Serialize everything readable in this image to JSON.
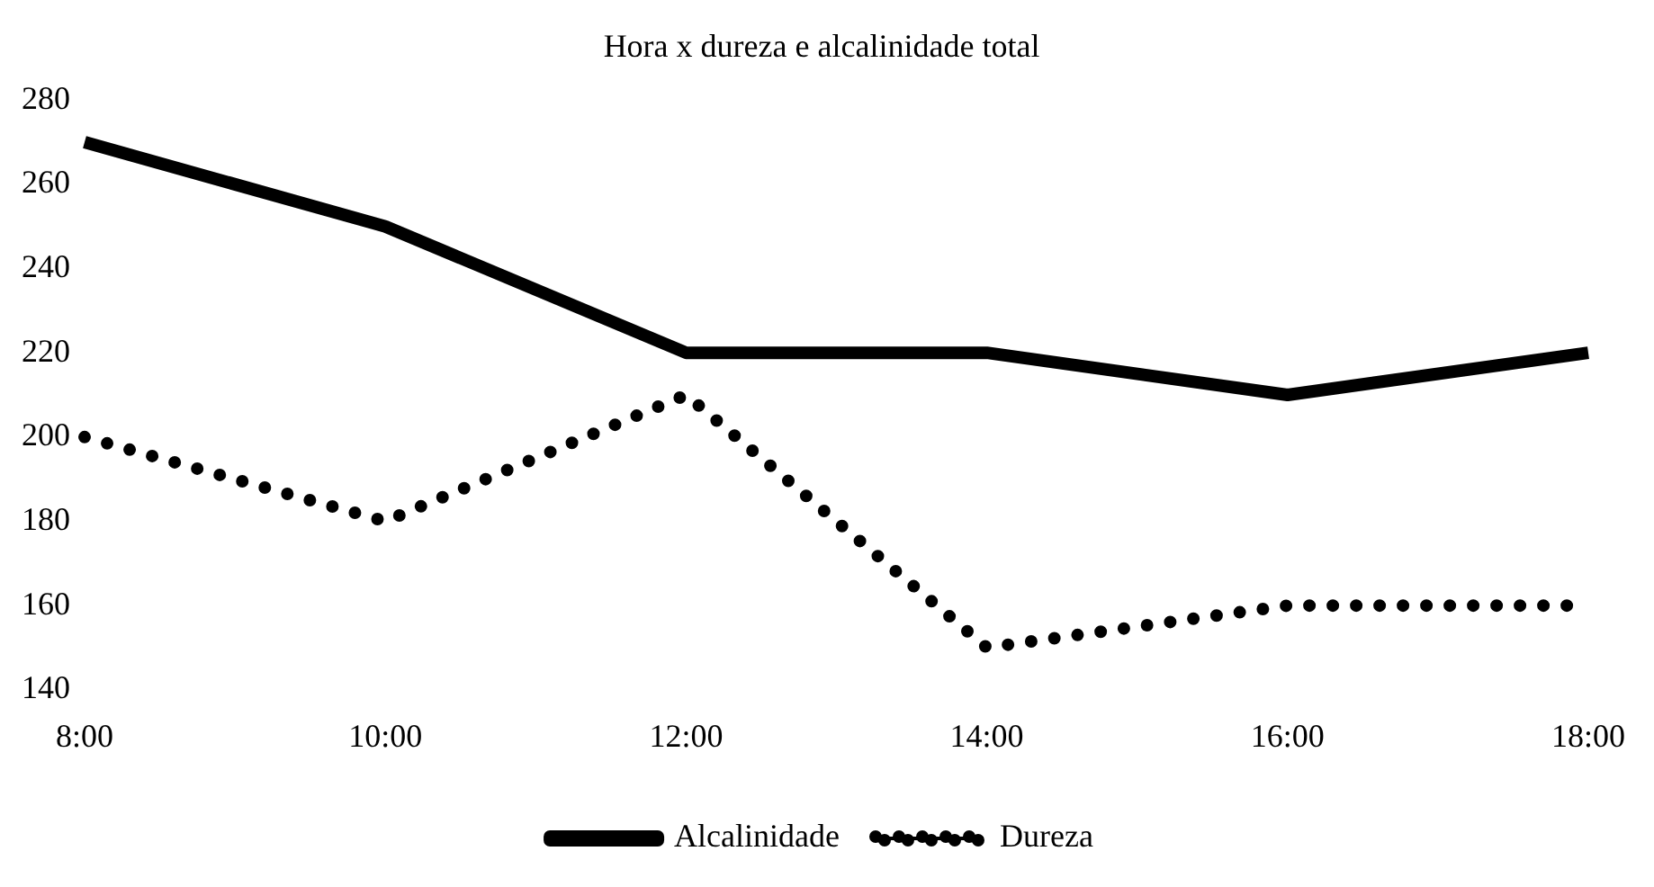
{
  "chart_data": {
    "type": "line",
    "title": "Hora x dureza e alcalinidade total",
    "categories": [
      "8:00",
      "10:00",
      "12:00",
      "14:00",
      "16:00",
      "18:00"
    ],
    "series": [
      {
        "name": "Alcalinidade",
        "color": "#000000",
        "line_style": "solid",
        "values": [
          270,
          250,
          220,
          220,
          210,
          220
        ]
      },
      {
        "name": "Dureza",
        "color": "#000000",
        "line_style": "dotted",
        "values": [
          200,
          180,
          210,
          150,
          160,
          160
        ]
      }
    ],
    "ylim": [
      140,
      280
    ],
    "yticks": [
      140,
      160,
      180,
      200,
      220,
      240,
      260,
      280
    ],
    "grid": false,
    "legend": "bottom",
    "marker": "none"
  }
}
